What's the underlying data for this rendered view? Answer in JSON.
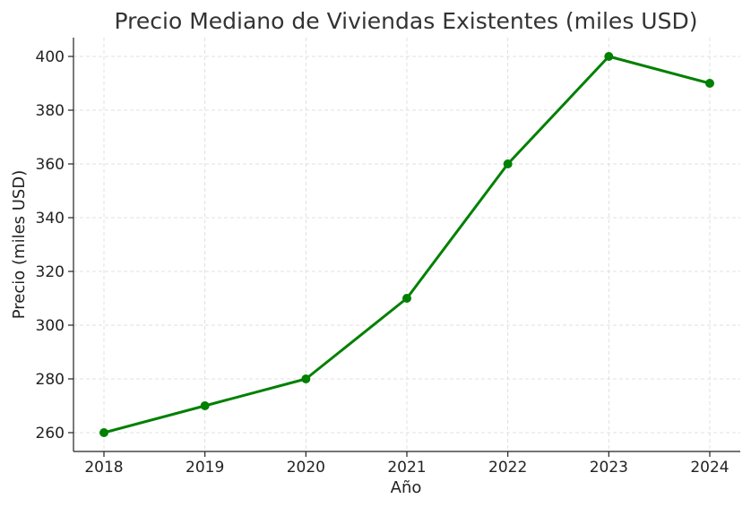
{
  "chart_data": {
    "type": "line",
    "title": "Precio Mediano de Viviendas Existentes (miles USD)",
    "xlabel": "Año",
    "ylabel": "Precio (miles USD)",
    "x": [
      "2018",
      "2019",
      "2020",
      "2021",
      "2022",
      "2023",
      "2024"
    ],
    "series": [
      {
        "values": [
          260,
          270,
          280,
          310,
          360,
          400,
          390
        ],
        "color": "#008000"
      }
    ],
    "yticks": [
      260,
      280,
      300,
      320,
      340,
      360,
      380,
      400
    ],
    "ylim": [
      253,
      407
    ],
    "grid": true,
    "marker": "circle"
  }
}
